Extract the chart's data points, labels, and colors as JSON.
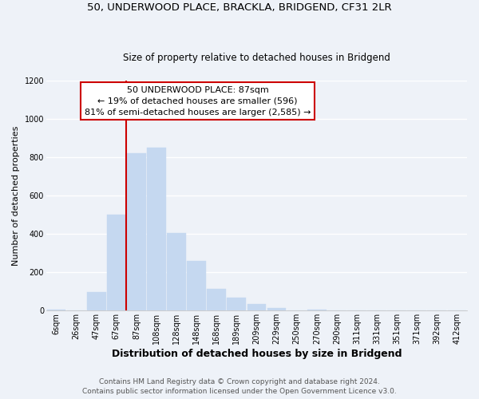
{
  "title_line1": "50, UNDERWOOD PLACE, BRACKLA, BRIDGEND, CF31 2LR",
  "title_line2": "Size of property relative to detached houses in Bridgend",
  "xlabel": "Distribution of detached houses by size in Bridgend",
  "ylabel": "Number of detached properties",
  "bar_labels": [
    "6sqm",
    "26sqm",
    "47sqm",
    "67sqm",
    "87sqm",
    "108sqm",
    "128sqm",
    "148sqm",
    "168sqm",
    "189sqm",
    "209sqm",
    "229sqm",
    "250sqm",
    "270sqm",
    "290sqm",
    "311sqm",
    "331sqm",
    "351sqm",
    "371sqm",
    "392sqm",
    "412sqm"
  ],
  "bar_heights": [
    5,
    0,
    95,
    500,
    820,
    850,
    405,
    258,
    115,
    68,
    35,
    15,
    0,
    5,
    0,
    0,
    0,
    0,
    0,
    0,
    0
  ],
  "bar_color": "#c5d8f0",
  "bar_edge_color": "#c5d8f0",
  "vline_index": 4,
  "vline_color": "#cc0000",
  "ylim": [
    0,
    1200
  ],
  "yticks": [
    0,
    200,
    400,
    600,
    800,
    1000,
    1200
  ],
  "annotation_title": "50 UNDERWOOD PLACE: 87sqm",
  "annotation_line1": "← 19% of detached houses are smaller (596)",
  "annotation_line2": "81% of semi-detached houses are larger (2,585) →",
  "annotation_box_color": "#ffffff",
  "annotation_box_edge": "#cc0000",
  "footer_line1": "Contains HM Land Registry data © Crown copyright and database right 2024.",
  "footer_line2": "Contains public sector information licensed under the Open Government Licence v3.0.",
  "background_color": "#eef2f8",
  "grid_color": "#ffffff",
  "title1_fontsize": 9.5,
  "title2_fontsize": 8.5,
  "xlabel_fontsize": 9,
  "ylabel_fontsize": 8,
  "tick_fontsize": 7,
  "footer_fontsize": 6.5,
  "ann_fontsize": 8
}
